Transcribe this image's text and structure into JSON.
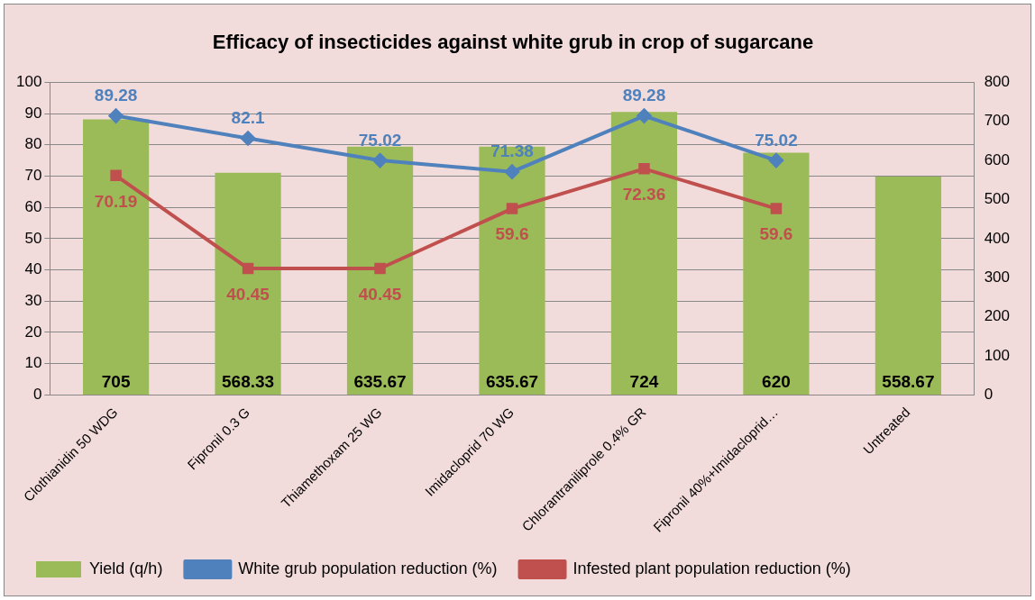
{
  "chart_data": {
    "type": "bar",
    "title": "Efficacy of insecticides against white grub in crop of sugarcane",
    "categories": [
      "Clothianidin 50 WDG",
      "Fipronil 0.3 G",
      "Thiamethoxam 25 WG",
      "Imidacloprid 70 WG",
      "Chlorantraniliprole 0.4% GR",
      "Fipronil 40%+Imidacloprid…",
      "Untreated"
    ],
    "series": [
      {
        "name": "Yield (q/h)",
        "axis": "y2",
        "color": "#9bbb59",
        "values": [
          705,
          568.33,
          635.67,
          635.67,
          724,
          620,
          558.67
        ]
      },
      {
        "name": "White grub population reduction (%)",
        "type": "line",
        "color": "#4f81bd",
        "marker": "diamond",
        "values": [
          89.28,
          82.1,
          75.02,
          71.38,
          89.28,
          75.02,
          null
        ]
      },
      {
        "name": "Infested plant population reduction (%)",
        "type": "line",
        "color": "#c0504d",
        "marker": "square",
        "values": [
          70.19,
          40.45,
          40.45,
          59.6,
          72.36,
          59.6,
          null
        ]
      }
    ],
    "ylim": [
      0,
      100
    ],
    "yticks": [
      0,
      10,
      20,
      30,
      40,
      50,
      60,
      70,
      80,
      90,
      100
    ],
    "y2lim": [
      0,
      800
    ],
    "y2ticks": [
      0,
      100,
      200,
      300,
      400,
      500,
      600,
      700,
      800
    ],
    "grid": "y",
    "legend": "bottom",
    "data_labels": true
  }
}
